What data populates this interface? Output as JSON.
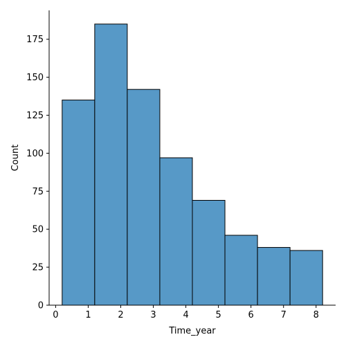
{
  "chart_data": {
    "type": "bar",
    "xlabel": "Time_year",
    "ylabel": "Count",
    "bins": [
      {
        "start": 0.2,
        "end": 1.2,
        "count": 135
      },
      {
        "start": 1.2,
        "end": 2.2,
        "count": 185
      },
      {
        "start": 2.2,
        "end": 3.2,
        "count": 142
      },
      {
        "start": 3.2,
        "end": 4.2,
        "count": 97
      },
      {
        "start": 4.2,
        "end": 5.2,
        "count": 69
      },
      {
        "start": 5.2,
        "end": 6.2,
        "count": 46
      },
      {
        "start": 6.2,
        "end": 7.2,
        "count": 38
      },
      {
        "start": 7.2,
        "end": 8.2,
        "count": 36
      }
    ],
    "x_ticks": [
      "0",
      "1",
      "2",
      "3",
      "4",
      "5",
      "6",
      "7",
      "8"
    ],
    "y_ticks": [
      "0",
      "25",
      "50",
      "75",
      "100",
      "125",
      "150",
      "175"
    ],
    "xlim": [
      -0.2,
      8.6
    ],
    "ylim": [
      0,
      194
    ],
    "grid": false,
    "bar_color": "#5799c7",
    "edge_color": "#000000"
  }
}
